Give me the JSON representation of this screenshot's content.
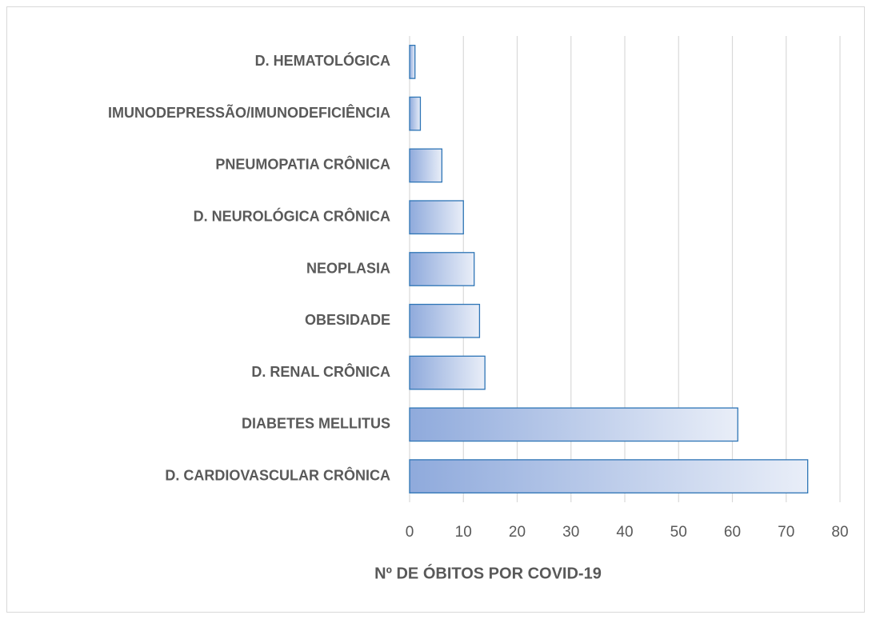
{
  "chart_data": {
    "type": "bar",
    "orientation": "horizontal",
    "x_label": "Nº DE ÓBITOS POR COVID-19",
    "categories": [
      "D. HEMATOLÓGICA",
      "IMUNODEPRESSÃO/IMUNODEFICIÊNCIA",
      "PNEUMOPATIA CRÔNICA",
      "D. NEUROLÓGICA CRÔNICA",
      "NEOPLASIA",
      "OBESIDADE",
      "D. RENAL CRÔNICA",
      "DIABETES MELLITUS",
      "D. CARDIOVASCULAR CRÔNICA"
    ],
    "values": [
      1,
      2,
      6,
      10,
      12,
      13,
      14,
      61,
      74
    ],
    "color": "#2e75b6",
    "xlim": [
      0,
      80
    ],
    "xticks": [
      0,
      10,
      20,
      30,
      40,
      50,
      60,
      70,
      80
    ],
    "grid": true
  }
}
